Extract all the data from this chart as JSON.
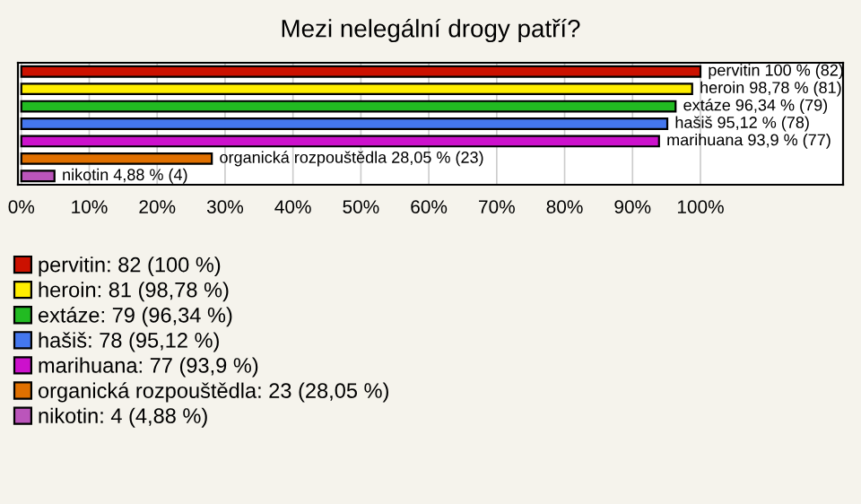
{
  "chart_data": {
    "type": "bar",
    "orientation": "horizontal",
    "title": "Mezi nelegální drogy patří?",
    "categories": [
      null,
      null,
      null,
      null,
      null,
      null,
      null
    ],
    "series": [
      {
        "name": "pervitin: 82 (100 %)",
        "color": "#cc1100",
        "values": [
          100,
          null,
          null,
          null,
          null,
          null,
          null
        ],
        "value_labels": [
          "pervitin 100 % (82)",
          null,
          null,
          null,
          null,
          null,
          null
        ]
      },
      {
        "name": "heroin: 81 (98,78 %)",
        "color": "#ffee00",
        "values": [
          null,
          98.78,
          null,
          null,
          null,
          null,
          null
        ],
        "value_labels": [
          null,
          "heroin 98,78 % (81)",
          null,
          null,
          null,
          null,
          null
        ]
      },
      {
        "name": "extáze: 79 (96,34 %)",
        "color": "#22bb22",
        "values": [
          null,
          null,
          96.34,
          null,
          null,
          null,
          null
        ],
        "value_labels": [
          null,
          null,
          "extáze 96,34 % (79)",
          null,
          null,
          null,
          null
        ]
      },
      {
        "name": "hašiš: 78 (95,12 %)",
        "color": "#4477ee",
        "values": [
          null,
          null,
          null,
          95.12,
          null,
          null,
          null
        ],
        "value_labels": [
          null,
          null,
          null,
          "hašiš 95,12 % (78)",
          null,
          null,
          null
        ]
      },
      {
        "name": "marihuana: 77 (93,9 %)",
        "color": "#cc11cc",
        "values": [
          null,
          null,
          null,
          null,
          93.9,
          null,
          null
        ],
        "value_labels": [
          null,
          null,
          null,
          null,
          "marihuana 93,9 % (77)",
          null,
          null
        ]
      },
      {
        "name": "organická rozpouštědla: 23 (28,05 %)",
        "color": "#e07000",
        "values": [
          null,
          null,
          null,
          null,
          null,
          28.05,
          null
        ],
        "value_labels": [
          null,
          null,
          null,
          null,
          null,
          "organická rozpouštědla 28,05 % (23)",
          null
        ]
      },
      {
        "name": "nikotin: 4 (4,88 %)",
        "color": "#bb55bb",
        "values": [
          null,
          null,
          null,
          null,
          null,
          null,
          4.88
        ],
        "value_labels": [
          null,
          null,
          null,
          null,
          null,
          null,
          "nikotin 4,88 % (4)"
        ]
      }
    ],
    "stacked": true,
    "xlim": [
      -0.5,
      121
    ],
    "xticks": [
      {
        "value": 0,
        "label": "0%"
      },
      {
        "value": 10,
        "label": "10%"
      },
      {
        "value": 20,
        "label": "20%"
      },
      {
        "value": 30,
        "label": "30%"
      },
      {
        "value": 40,
        "label": "40%"
      },
      {
        "value": 50,
        "label": "50%"
      },
      {
        "value": 60,
        "label": "60%"
      },
      {
        "value": 70,
        "label": "70%"
      },
      {
        "value": 80,
        "label": "80%"
      },
      {
        "value": 90,
        "label": "90%"
      },
      {
        "value": 100,
        "label": "100%"
      }
    ],
    "grid": "x",
    "legend": "bottom"
  }
}
